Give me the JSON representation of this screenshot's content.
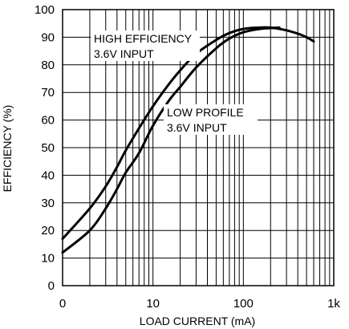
{
  "chart_data": {
    "type": "line",
    "title": "",
    "xlabel": "LOAD CURRENT (mA)",
    "ylabel": "EFFICIENCY (%)",
    "xscale": "log",
    "xlim": [
      1,
      1000
    ],
    "ylim": [
      0,
      100
    ],
    "grid": true,
    "x_tick_labels": [
      "0",
      "10",
      "100",
      "1k"
    ],
    "y_ticks": [
      0,
      10,
      20,
      30,
      40,
      50,
      60,
      70,
      80,
      90,
      100
    ],
    "series": [
      {
        "name": "HIGH EFFICIENCY\n3.6V INPUT",
        "x": [
          1,
          2,
          3,
          4,
          5,
          7,
          10,
          15,
          20,
          30,
          50,
          70,
          100,
          150,
          200,
          300,
          400,
          500,
          600
        ],
        "y": [
          17,
          28,
          36,
          43,
          49,
          57,
          65,
          73,
          78,
          84,
          89,
          91.5,
          93,
          93.5,
          93.5,
          92.5,
          91.3,
          90,
          88.5
        ]
      },
      {
        "name": "LOW PROFILE\n3.6V INPUT",
        "x": [
          1,
          2,
          3,
          4,
          5,
          7,
          10,
          15,
          20,
          30,
          50,
          70,
          100,
          150,
          200,
          250
        ],
        "y": [
          12,
          20,
          28,
          35,
          41,
          48,
          58,
          67,
          72,
          79,
          86,
          89.5,
          91.8,
          93,
          93.3,
          93.5
        ]
      }
    ]
  }
}
